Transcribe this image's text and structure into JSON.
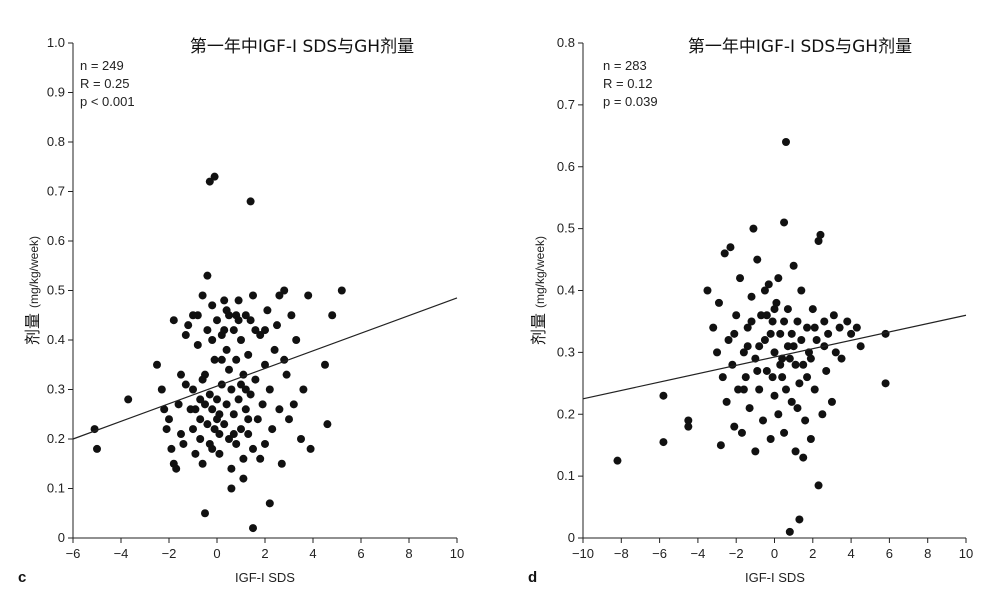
{
  "chart_data": [
    {
      "type": "scatter",
      "title": "第一年中IGF-I SDS与GH剂量",
      "panel": "c",
      "xlabel": "IGF-I SDS",
      "ylabel_cn": "剂量",
      "ylabel_unit": "(mg/kg/week)",
      "xlim": [
        -6,
        10
      ],
      "ylim": [
        0,
        1.0
      ],
      "xticks": [
        -6,
        -4,
        -2,
        0,
        2,
        4,
        6,
        8,
        10
      ],
      "xtick_labels": [
        "−6",
        "−4",
        "−2",
        "0",
        "2",
        "4",
        "6",
        "8",
        "10"
      ],
      "yticks": [
        0,
        0.1,
        0.2,
        0.3,
        0.4,
        0.5,
        0.6,
        0.7,
        0.8,
        0.9,
        1.0
      ],
      "ytick_labels": [
        "0",
        "0.1",
        "0.2",
        "0.3",
        "0.4",
        "0.5",
        "0.6",
        "0.7",
        "0.8",
        "0.9",
        "1.0"
      ],
      "stats": [
        "n = 249",
        "R = 0.25",
        "p < 0.001"
      ],
      "fit_line": [
        [
          -6,
          0.2
        ],
        [
          10,
          0.485
        ]
      ],
      "grid": false,
      "points": [
        [
          -5.1,
          0.22
        ],
        [
          -5.0,
          0.18
        ],
        [
          -3.7,
          0.28
        ],
        [
          -2.5,
          0.35
        ],
        [
          -2.3,
          0.3
        ],
        [
          -2.2,
          0.26
        ],
        [
          -2.1,
          0.22
        ],
        [
          -2.0,
          0.24
        ],
        [
          -1.9,
          0.18
        ],
        [
          -1.8,
          0.15
        ],
        [
          -1.8,
          0.44
        ],
        [
          -1.6,
          0.27
        ],
        [
          -1.5,
          0.21
        ],
        [
          -1.4,
          0.19
        ],
        [
          -1.3,
          0.31
        ],
        [
          -1.2,
          0.43
        ],
        [
          -1.1,
          0.26
        ],
        [
          -1.0,
          0.22
        ],
        [
          -1.0,
          0.3
        ],
        [
          -0.9,
          0.17
        ],
        [
          -0.8,
          0.45
        ],
        [
          -0.8,
          0.39
        ],
        [
          -0.7,
          0.24
        ],
        [
          -0.7,
          0.2
        ],
        [
          -0.6,
          0.49
        ],
        [
          -0.6,
          0.15
        ],
        [
          -0.5,
          0.27
        ],
        [
          -0.5,
          0.33
        ],
        [
          -0.4,
          0.42
        ],
        [
          -0.4,
          0.23
        ],
        [
          -0.3,
          0.29
        ],
        [
          -0.3,
          0.19
        ],
        [
          -0.2,
          0.47
        ],
        [
          -0.2,
          0.26
        ],
        [
          -0.1,
          0.36
        ],
        [
          -0.1,
          0.22
        ],
        [
          0.0,
          0.44
        ],
        [
          0.0,
          0.28
        ],
        [
          0.1,
          0.25
        ],
        [
          0.1,
          0.17
        ],
        [
          0.2,
          0.41
        ],
        [
          0.2,
          0.31
        ],
        [
          0.3,
          0.48
        ],
        [
          0.3,
          0.23
        ],
        [
          0.4,
          0.38
        ],
        [
          0.4,
          0.27
        ],
        [
          0.5,
          0.2
        ],
        [
          0.5,
          0.45
        ],
        [
          0.6,
          0.3
        ],
        [
          0.6,
          0.14
        ],
        [
          0.7,
          0.42
        ],
        [
          0.7,
          0.25
        ],
        [
          0.8,
          0.36
        ],
        [
          0.8,
          0.19
        ],
        [
          0.9,
          0.48
        ],
        [
          0.9,
          0.28
        ],
        [
          1.0,
          0.22
        ],
        [
          1.0,
          0.4
        ],
        [
          1.1,
          0.33
        ],
        [
          1.1,
          0.16
        ],
        [
          1.2,
          0.45
        ],
        [
          1.2,
          0.26
        ],
        [
          1.3,
          0.37
        ],
        [
          1.3,
          0.21
        ],
        [
          1.4,
          0.29
        ],
        [
          1.4,
          0.44
        ],
        [
          1.5,
          0.18
        ],
        [
          1.5,
          0.49
        ],
        [
          1.6,
          0.32
        ],
        [
          1.7,
          0.24
        ],
        [
          1.8,
          0.41
        ],
        [
          1.9,
          0.27
        ],
        [
          2.0,
          0.35
        ],
        [
          2.0,
          0.19
        ],
        [
          2.1,
          0.46
        ],
        [
          2.2,
          0.3
        ],
        [
          2.3,
          0.22
        ],
        [
          2.4,
          0.38
        ],
        [
          2.5,
          0.43
        ],
        [
          2.6,
          0.26
        ],
        [
          2.7,
          0.15
        ],
        [
          2.8,
          0.5
        ],
        [
          2.9,
          0.33
        ],
        [
          3.0,
          0.24
        ],
        [
          3.1,
          0.45
        ],
        [
          3.3,
          0.4
        ],
        [
          3.5,
          0.2
        ],
        [
          3.6,
          0.3
        ],
        [
          3.8,
          0.49
        ],
        [
          3.9,
          0.18
        ],
        [
          4.5,
          0.35
        ],
        [
          4.6,
          0.23
        ],
        [
          4.8,
          0.45
        ],
        [
          5.2,
          0.5
        ],
        [
          -0.3,
          0.72
        ],
        [
          -0.1,
          0.73
        ],
        [
          1.4,
          0.68
        ],
        [
          -0.4,
          0.53
        ],
        [
          -0.5,
          0.05
        ],
        [
          1.5,
          0.02
        ],
        [
          2.2,
          0.07
        ],
        [
          1.1,
          0.12
        ],
        [
          0.6,
          0.1
        ],
        [
          -1.7,
          0.14
        ],
        [
          0.3,
          0.42
        ],
        [
          -0.9,
          0.26
        ],
        [
          0.8,
          0.45
        ],
        [
          1.6,
          0.42
        ],
        [
          -0.2,
          0.4
        ],
        [
          0.4,
          0.46
        ],
        [
          2.6,
          0.49
        ],
        [
          -1.3,
          0.41
        ],
        [
          3.2,
          0.27
        ],
        [
          1.0,
          0.31
        ],
        [
          0.1,
          0.21
        ],
        [
          -0.6,
          0.32
        ],
        [
          1.8,
          0.16
        ],
        [
          0.5,
          0.34
        ],
        [
          -1.0,
          0.45
        ],
        [
          2.0,
          0.42
        ],
        [
          -0.7,
          0.28
        ],
        [
          1.3,
          0.24
        ],
        [
          0.7,
          0.21
        ],
        [
          -0.2,
          0.18
        ],
        [
          0.9,
          0.44
        ],
        [
          0.2,
          0.36
        ],
        [
          1.2,
          0.3
        ],
        [
          -1.5,
          0.33
        ],
        [
          2.8,
          0.36
        ],
        [
          0.0,
          0.24
        ]
      ]
    },
    {
      "type": "scatter",
      "title": "第一年中IGF-I SDS与GH剂量",
      "panel": "d",
      "xlabel": "IGF-I SDS",
      "ylabel_cn": "剂量",
      "ylabel_unit": "(mg/kg/week)",
      "xlim": [
        -10,
        10
      ],
      "ylim": [
        0,
        0.8
      ],
      "xticks": [
        -10,
        -8,
        -6,
        -4,
        -2,
        0,
        2,
        4,
        6,
        8,
        10
      ],
      "xtick_labels": [
        "−10",
        "−8",
        "−6",
        "−4",
        "−2",
        "0",
        "2",
        "4",
        "6",
        "8",
        "10"
      ],
      "yticks": [
        0,
        0.1,
        0.2,
        0.3,
        0.4,
        0.5,
        0.6,
        0.7,
        0.8
      ],
      "ytick_labels": [
        "0",
        "0.1",
        "0.2",
        "0.3",
        "0.4",
        "0.5",
        "0.6",
        "0.7",
        "0.8"
      ],
      "stats": [
        "n = 283",
        "R = 0.12",
        "p = 0.039"
      ],
      "fit_line": [
        [
          -10,
          0.225
        ],
        [
          10,
          0.36
        ]
      ],
      "grid": false,
      "points": [
        [
          -8.2,
          0.125
        ],
        [
          -5.8,
          0.23
        ],
        [
          -5.8,
          0.155
        ],
        [
          -4.5,
          0.19
        ],
        [
          -4.5,
          0.18
        ],
        [
          -3.5,
          0.4
        ],
        [
          -3.2,
          0.34
        ],
        [
          -3.0,
          0.3
        ],
        [
          -2.9,
          0.38
        ],
        [
          -2.8,
          0.15
        ],
        [
          -2.7,
          0.26
        ],
        [
          -2.6,
          0.46
        ],
        [
          -2.5,
          0.22
        ],
        [
          -2.4,
          0.32
        ],
        [
          -2.3,
          0.47
        ],
        [
          -2.2,
          0.28
        ],
        [
          -2.1,
          0.18
        ],
        [
          -2.0,
          0.36
        ],
        [
          -1.9,
          0.24
        ],
        [
          -1.8,
          0.42
        ],
        [
          -1.7,
          0.17
        ],
        [
          -1.6,
          0.3
        ],
        [
          -1.5,
          0.26
        ],
        [
          -1.4,
          0.34
        ],
        [
          -1.3,
          0.21
        ],
        [
          -1.2,
          0.39
        ],
        [
          -1.1,
          0.5
        ],
        [
          -1.0,
          0.14
        ],
        [
          -1.0,
          0.29
        ],
        [
          -0.9,
          0.45
        ],
        [
          -0.8,
          0.24
        ],
        [
          -0.7,
          0.36
        ],
        [
          -0.6,
          0.19
        ],
        [
          -0.5,
          0.32
        ],
        [
          -0.4,
          0.27
        ],
        [
          -0.3,
          0.41
        ],
        [
          -0.2,
          0.16
        ],
        [
          -0.1,
          0.35
        ],
        [
          0.0,
          0.23
        ],
        [
          0.0,
          0.3
        ],
        [
          0.1,
          0.38
        ],
        [
          0.2,
          0.2
        ],
        [
          0.3,
          0.33
        ],
        [
          0.4,
          0.26
        ],
        [
          0.5,
          0.51
        ],
        [
          0.5,
          0.17
        ],
        [
          0.6,
          0.64
        ],
        [
          0.7,
          0.37
        ],
        [
          0.8,
          0.29
        ],
        [
          0.9,
          0.22
        ],
        [
          1.0,
          0.44
        ],
        [
          1.0,
          0.31
        ],
        [
          1.1,
          0.14
        ],
        [
          1.2,
          0.35
        ],
        [
          1.3,
          0.25
        ],
        [
          1.4,
          0.4
        ],
        [
          1.5,
          0.28
        ],
        [
          1.6,
          0.19
        ],
        [
          1.7,
          0.34
        ],
        [
          1.8,
          0.3
        ],
        [
          1.9,
          0.16
        ],
        [
          2.0,
          0.37
        ],
        [
          2.1,
          0.24
        ],
        [
          2.2,
          0.32
        ],
        [
          2.3,
          0.48
        ],
        [
          2.4,
          0.49
        ],
        [
          2.5,
          0.2
        ],
        [
          2.6,
          0.35
        ],
        [
          2.7,
          0.27
        ],
        [
          2.8,
          0.33
        ],
        [
          3.0,
          0.22
        ],
        [
          3.1,
          0.36
        ],
        [
          3.2,
          0.3
        ],
        [
          3.4,
          0.34
        ],
        [
          3.5,
          0.29
        ],
        [
          3.8,
          0.35
        ],
        [
          4.0,
          0.33
        ],
        [
          4.3,
          0.34
        ],
        [
          4.5,
          0.31
        ],
        [
          5.8,
          0.33
        ],
        [
          5.8,
          0.25
        ],
        [
          0.8,
          0.01
        ],
        [
          1.3,
          0.03
        ],
        [
          2.3,
          0.085
        ],
        [
          1.5,
          0.13
        ],
        [
          0.2,
          0.42
        ],
        [
          -0.5,
          0.4
        ],
        [
          0.9,
          0.33
        ],
        [
          -1.4,
          0.31
        ],
        [
          1.7,
          0.26
        ],
        [
          0.4,
          0.29
        ],
        [
          -0.2,
          0.33
        ],
        [
          -0.8,
          0.31
        ],
        [
          1.1,
          0.28
        ],
        [
          -1.6,
          0.24
        ],
        [
          2.6,
          0.31
        ],
        [
          0.6,
          0.24
        ],
        [
          -0.4,
          0.36
        ],
        [
          0.3,
          0.28
        ],
        [
          1.4,
          0.32
        ],
        [
          -2.1,
          0.33
        ],
        [
          0.0,
          0.37
        ],
        [
          0.7,
          0.31
        ],
        [
          -0.9,
          0.27
        ],
        [
          1.9,
          0.29
        ],
        [
          -0.1,
          0.26
        ],
        [
          0.5,
          0.35
        ],
        [
          1.2,
          0.21
        ],
        [
          -1.2,
          0.35
        ],
        [
          2.1,
          0.34
        ]
      ]
    }
  ]
}
